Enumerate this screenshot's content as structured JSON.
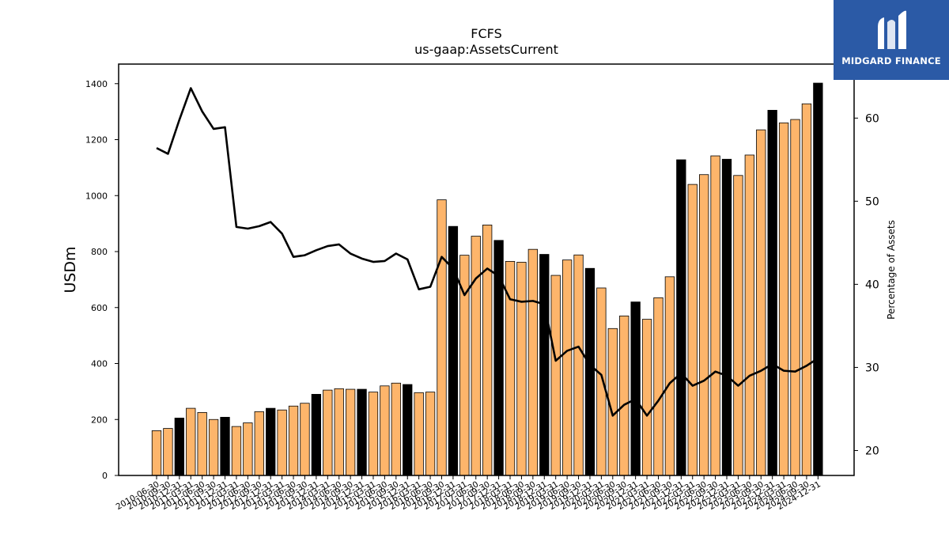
{
  "logo": {
    "text": "MIDGARD FINANCE"
  },
  "chart_data": {
    "type": "bar",
    "title": "FCFS",
    "subtitle": "us-gaap:AssetsCurrent",
    "ylabel": "USDm",
    "y2label": "Percentage of Assets",
    "ylim": [
      0,
      1470
    ],
    "y2lim": [
      17.0,
      66.5
    ],
    "yticks": [
      0,
      200,
      400,
      600,
      800,
      1000,
      1200,
      1400
    ],
    "y2ticks": [
      20,
      30,
      40,
      50,
      60
    ],
    "colors": {
      "bar": "#fdb56b",
      "bar_annual": "#000000",
      "line": "#000000"
    },
    "categories": [
      "2010-06-30",
      "2010-09-30",
      "2010-12-31",
      "2011-03-31",
      "2011-06-30",
      "2011-09-30",
      "2011-12-31",
      "2012-03-31",
      "2012-06-30",
      "2012-09-30",
      "2012-12-31",
      "2013-03-31",
      "2013-06-30",
      "2013-09-30",
      "2013-12-31",
      "2014-03-31",
      "2014-06-30",
      "2014-09-30",
      "2014-12-31",
      "2015-03-31",
      "2015-06-30",
      "2015-09-30",
      "2015-12-31",
      "2016-03-31",
      "2016-06-30",
      "2016-09-30",
      "2016-12-31",
      "2017-03-31",
      "2017-06-30",
      "2017-09-30",
      "2017-12-31",
      "2018-03-31",
      "2018-06-30",
      "2018-09-30",
      "2018-12-31",
      "2019-03-31",
      "2019-06-30",
      "2019-09-30",
      "2019-12-31",
      "2020-03-31",
      "2020-06-30",
      "2020-09-30",
      "2020-12-31",
      "2021-03-31",
      "2021-06-30",
      "2021-09-30",
      "2021-12-31",
      "2022-03-31",
      "2022-06-30",
      "2022-09-30",
      "2022-12-31",
      "2023-03-31",
      "2023-06-30",
      "2023-09-30",
      "2023-12-31",
      "2024-03-31",
      "2024-06-30",
      "2024-09-30",
      "2024-12-31"
    ],
    "tick_labels": [
      "2010-06-30",
      "2010-09-30",
      "2010-12-31",
      "2011-03-31",
      "2011-06-30",
      "2011-09-30",
      "2011-12-31",
      "2012-03-31",
      "2012-06-30",
      "2012-09-30",
      "2012-12-31",
      "2013-03-31",
      "2013-06-30",
      "2013-09-30",
      "2013-12-31",
      "2014-03-31",
      "2014-06-30",
      "2014-09-30",
      "2014-12-31",
      "2015-03-31",
      "2015-06-30",
      "2015-09-30",
      "2015-12-31",
      "2016-03-31",
      "2016-06-30",
      "2016-09-30",
      "2016-12-31",
      "2017-03-31",
      "2017-06-30",
      "2017-09-30",
      "2017-12-31",
      "2018-03-31",
      "2018-06-30",
      "2018-09-30",
      "2018-12-31",
      "2019-03-31",
      "2019-06-30",
      "2019-09-30",
      "2019-12-31",
      "2020-03-31",
      "2020-06-30",
      "2020-09-30",
      "2020-12-31",
      "2021-03-31",
      "2021-06-30",
      "2021-09-30",
      "2021-12-31",
      "2022-03-31",
      "2022-06-30",
      "2022-09-30",
      "2022-12-31",
      "2023-03-31",
      "2023-06-30",
      "2023-09-30",
      "2023-12-31",
      "2024-03-31",
      "2024-06-30",
      "2024-09-30",
      "2024-12-31"
    ],
    "values": [
      160,
      168,
      205,
      240,
      225,
      200,
      208,
      175,
      188,
      228,
      240,
      234,
      248,
      258,
      290,
      305,
      310,
      308,
      308,
      298,
      320,
      330,
      325,
      296,
      298,
      985,
      890,
      787,
      855,
      895,
      840,
      765,
      762,
      808,
      790,
      715,
      770,
      788,
      740,
      670,
      525,
      570,
      620,
      558,
      635,
      710,
      1128,
      1040,
      1075,
      1142,
      1130,
      1072,
      1145,
      1235,
      1305,
      1260,
      1272,
      1328,
      1402
    ],
    "annual": [
      false,
      false,
      true,
      false,
      false,
      false,
      true,
      false,
      false,
      false,
      true,
      false,
      false,
      false,
      true,
      false,
      false,
      false,
      true,
      false,
      false,
      false,
      true,
      false,
      false,
      false,
      true,
      false,
      false,
      false,
      true,
      false,
      false,
      false,
      true,
      false,
      false,
      false,
      true,
      false,
      false,
      false,
      true,
      false,
      false,
      false,
      true,
      false,
      false,
      false,
      true,
      false,
      false,
      false,
      true,
      false,
      false,
      false,
      true
    ],
    "pct_of_assets": [
      56.4,
      55.7,
      59.8,
      63.6,
      60.8,
      58.7,
      58.9,
      46.9,
      46.7,
      47.0,
      47.5,
      46.1,
      43.3,
      43.5,
      44.1,
      44.6,
      44.8,
      43.7,
      43.1,
      42.7,
      42.8,
      43.7,
      43.0,
      39.4,
      39.7,
      43.3,
      41.9,
      38.7,
      40.7,
      41.9,
      41.0,
      38.2,
      37.9,
      38.0,
      37.6,
      30.8,
      32.0,
      32.5,
      30.3,
      29.1,
      24.2,
      25.5,
      26.2,
      24.2,
      26.0,
      28.1,
      29.3,
      27.8,
      28.4,
      29.5,
      29.0,
      27.8,
      29.0,
      29.6,
      30.4,
      29.6,
      29.5,
      30.2,
      31.1
    ]
  }
}
